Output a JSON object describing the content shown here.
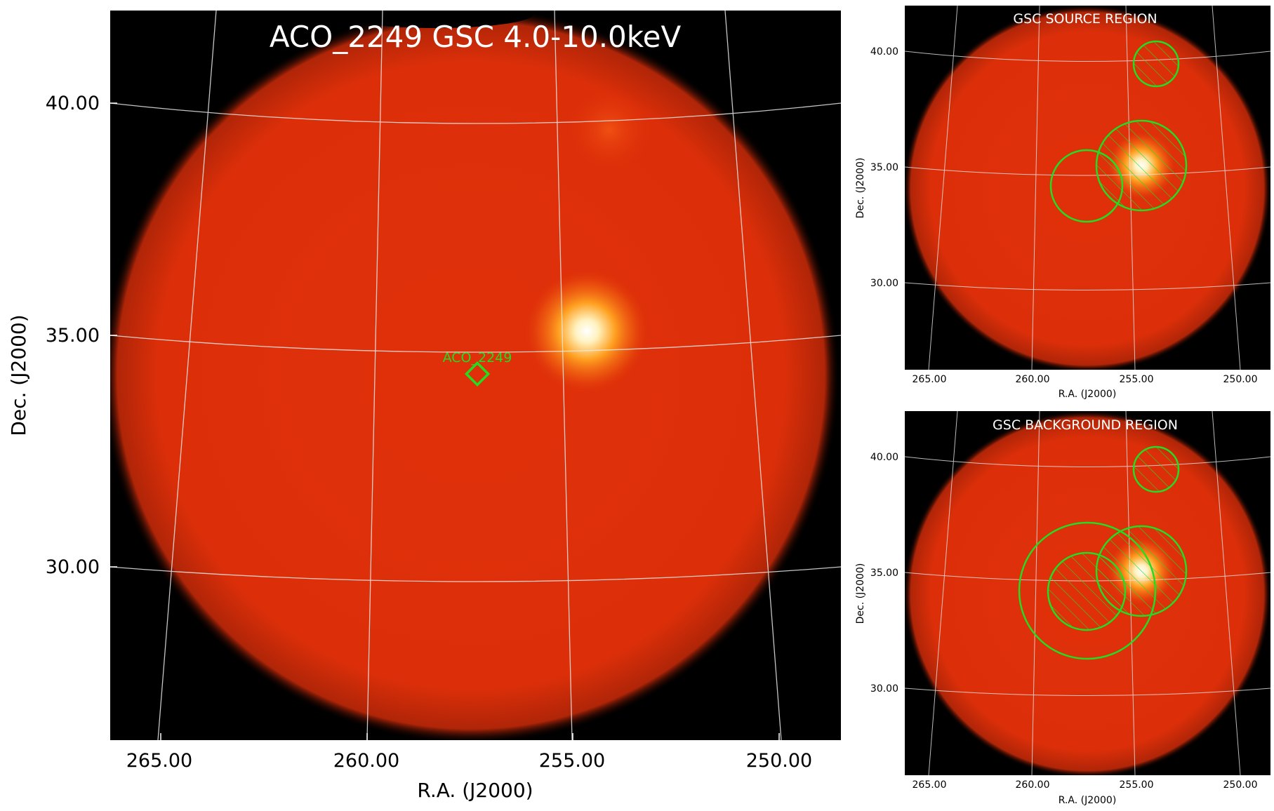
{
  "main": {
    "title": "ACO_2249 GSC 4.0-10.0keV",
    "target_label": "ACO_2249",
    "xlabel": "R.A. (J2000)",
    "ylabel": "Dec. (J2000)",
    "x_ticks": [
      "265.00",
      "260.00",
      "255.00",
      "250.00"
    ],
    "y_ticks": [
      "40.00",
      "35.00",
      "30.00"
    ]
  },
  "source_panel": {
    "title": "GSC SOURCE REGION",
    "xlabel": "R.A. (J2000)",
    "ylabel": "Dec. (J2000)",
    "x_ticks": [
      "265.00",
      "260.00",
      "255.00",
      "250.00"
    ],
    "y_ticks": [
      "40.00",
      "35.00",
      "30.00"
    ]
  },
  "background_panel": {
    "title": "GSC BACKGROUND REGION",
    "xlabel": "R.A. (J2000)",
    "ylabel": "Dec. (J2000)",
    "x_ticks": [
      "265.00",
      "260.00",
      "255.00",
      "250.00"
    ],
    "y_ticks": [
      "40.00",
      "35.00",
      "30.00"
    ]
  },
  "colors": {
    "field": "#e0300a",
    "edge": "#000000",
    "region": "#22dd22",
    "grid": "#e8e8e8",
    "label_text": "#ffffff"
  }
}
